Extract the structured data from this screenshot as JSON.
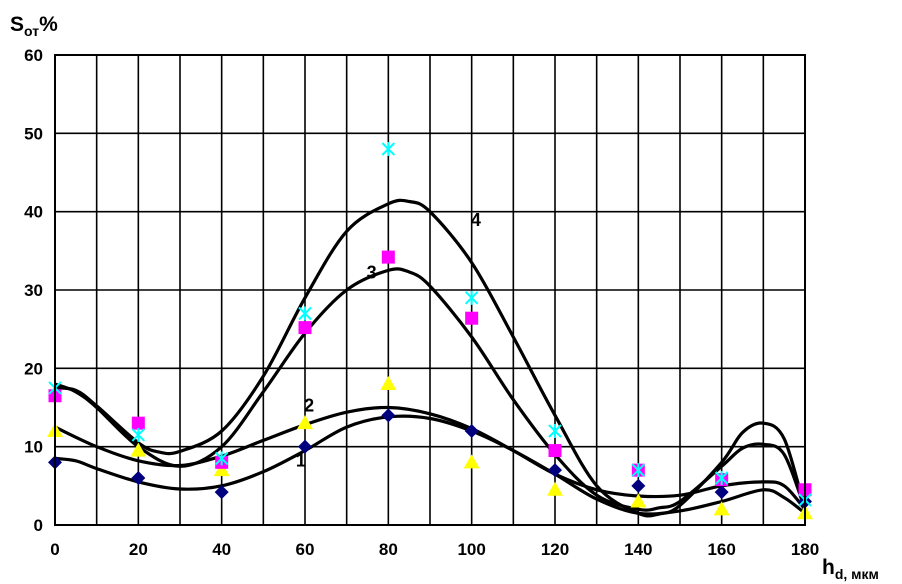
{
  "chart_data": {
    "type": "scatter",
    "ylabel": "S",
    "ylabel_sub": "от",
    "ylabel_unit": "%",
    "xlabel": "h",
    "xlabel_sub": "d, мкм",
    "xlim": [
      0,
      180
    ],
    "ylim": [
      0,
      60
    ],
    "xticks": [
      0,
      20,
      40,
      60,
      80,
      100,
      120,
      140,
      160,
      180
    ],
    "yticks": [
      0,
      10,
      20,
      30,
      40,
      50,
      60
    ],
    "grid_x_step": 10,
    "grid_y_step": 10,
    "grid": true,
    "legend": "none",
    "series": [
      {
        "marker": "diamond",
        "color": "#00007f",
        "x": [
          0,
          20,
          40,
          60,
          80,
          100,
          120,
          140,
          160,
          180
        ],
        "y": [
          8,
          6,
          4.2,
          10,
          14,
          12,
          7,
          5,
          4.2,
          3
        ]
      },
      {
        "marker": "triangle",
        "color": "#ffff00",
        "x": [
          0,
          20,
          40,
          60,
          80,
          100,
          120,
          140,
          160,
          180
        ],
        "y": [
          12,
          9.5,
          7,
          13,
          18,
          8,
          4.5,
          3,
          2,
          1.5
        ]
      },
      {
        "marker": "square",
        "color": "#ff00ff",
        "x": [
          0,
          20,
          40,
          60,
          80,
          100,
          120,
          140,
          160,
          180
        ],
        "y": [
          16.5,
          13,
          8,
          25.2,
          34.2,
          26.4,
          9.5,
          7,
          5.8,
          4.5
        ]
      },
      {
        "marker": "star",
        "color": "#00ffff",
        "x": [
          0,
          20,
          40,
          60,
          80,
          100,
          120,
          140,
          160,
          180
        ],
        "y": [
          17.5,
          11.5,
          8.5,
          27,
          48,
          29,
          12,
          7,
          6,
          3.2
        ]
      }
    ],
    "curves": [
      {
        "label": "1",
        "label_at": [
          59,
          7.5
        ],
        "x": [
          0,
          5,
          10,
          20,
          30,
          40,
          50,
          60,
          70,
          80,
          90,
          100,
          110,
          120,
          130,
          140,
          150,
          160,
          170,
          175,
          180
        ],
        "y": [
          8.5,
          8.2,
          7.2,
          5.5,
          4.6,
          5,
          6.8,
          9.5,
          12.5,
          13.8,
          13.6,
          12,
          9.5,
          6.5,
          3.3,
          1.5,
          1.8,
          3,
          4.5,
          3.5,
          1.5
        ]
      },
      {
        "label": "2",
        "label_at": [
          61,
          14.5
        ],
        "x": [
          0,
          10,
          20,
          30,
          40,
          50,
          60,
          70,
          80,
          90,
          100,
          110,
          120,
          130,
          140,
          150,
          160,
          170,
          175,
          180
        ],
        "y": [
          12.5,
          10,
          8.2,
          7.6,
          8.8,
          10.8,
          12.8,
          14.4,
          15,
          14.2,
          12.3,
          9.5,
          6.5,
          4.5,
          3.7,
          3.8,
          5,
          5.5,
          5,
          2
        ]
      },
      {
        "label": "3",
        "label_at": [
          76,
          31.5
        ],
        "x": [
          0,
          5,
          10,
          20,
          30,
          40,
          50,
          60,
          70,
          80,
          85,
          90,
          100,
          110,
          120,
          130,
          140,
          145,
          150,
          160,
          165,
          170,
          175,
          180
        ],
        "y": [
          18,
          17,
          15,
          10,
          7.5,
          10,
          17,
          24.5,
          30,
          32.5,
          32.3,
          30.5,
          24,
          16,
          9,
          3.8,
          2,
          2.2,
          3,
          7.5,
          9.8,
          10.3,
          9,
          2
        ]
      },
      {
        "label": "4",
        "label_at": [
          101,
          38.2
        ],
        "x": [
          0,
          5,
          10,
          20,
          25,
          30,
          40,
          50,
          60,
          70,
          80,
          85,
          90,
          100,
          110,
          120,
          130,
          140,
          145,
          150,
          160,
          165,
          170,
          175,
          180
        ],
        "y": [
          17.5,
          17.2,
          15.2,
          10.5,
          9.3,
          9.4,
          12,
          19,
          29,
          37.5,
          41,
          41.3,
          40,
          33.5,
          24,
          14,
          5,
          1.5,
          1.4,
          2.5,
          8,
          11.8,
          13,
          11,
          2
        ]
      }
    ]
  }
}
